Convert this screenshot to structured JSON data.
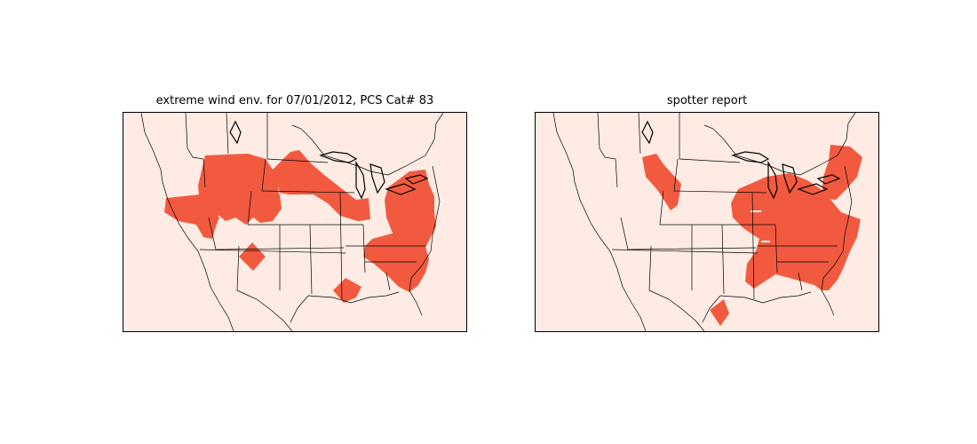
{
  "figure": {
    "left_panel": {
      "title": "extreme wind env. for 07/01/2012, PCS Cat# 83"
    },
    "right_panel": {
      "title": "spotter report"
    }
  },
  "colors": {
    "land_background": "#feece4",
    "highlight": "#f25a40",
    "border": "#000000"
  }
}
